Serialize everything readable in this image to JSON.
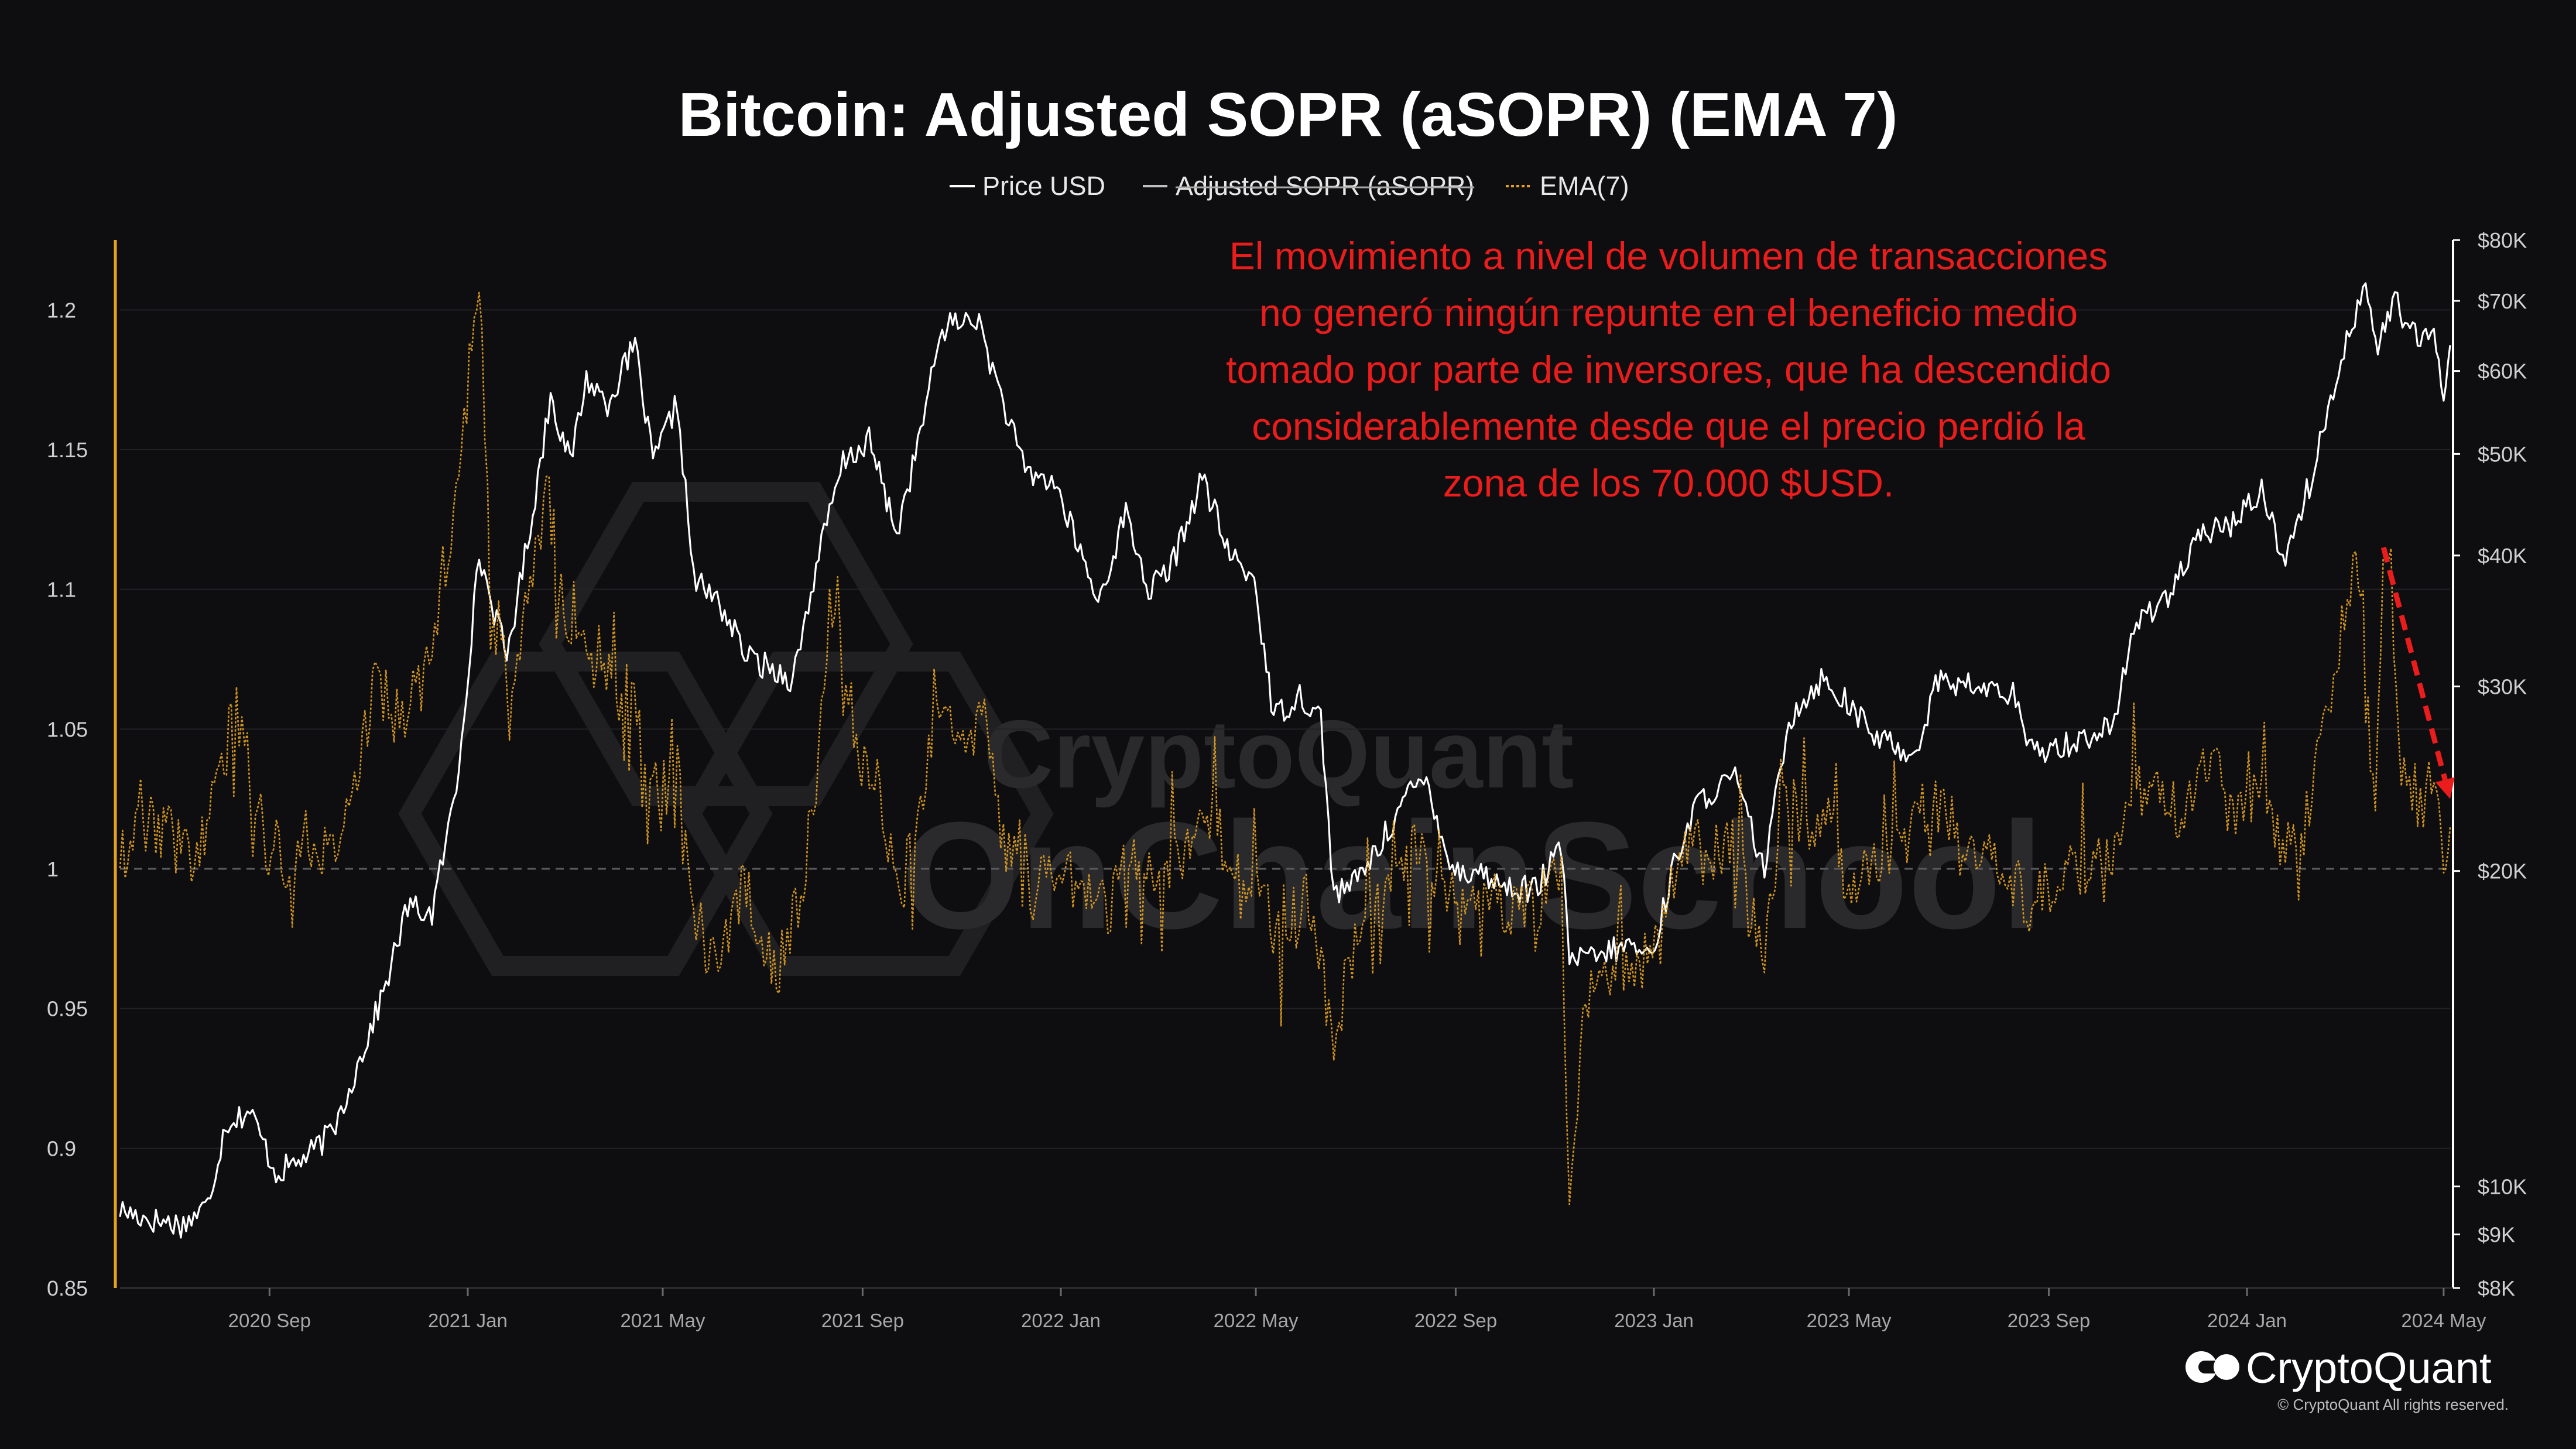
{
  "chart_data": {
    "type": "line",
    "title": "Bitcoin: Adjusted SOPR (aSOPR) (EMA 7)",
    "legend": [
      {
        "name": "Price USD",
        "style": "solid",
        "color": "#ffffff",
        "hidden": false
      },
      {
        "name": "Adjusted SOPR (aSOPR)",
        "style": "solid",
        "color": "#ffffff",
        "hidden": true
      },
      {
        "name": "EMA(7)",
        "style": "dashed",
        "color": "#e5a21f",
        "hidden": false
      }
    ],
    "legend_placement": "top-center",
    "x_ticks": [
      "2020 Sep",
      "2021 Jan",
      "2021 May",
      "2021 Sep",
      "2022 Jan",
      "2022 May",
      "2022 Sep",
      "2023 Jan",
      "2023 May",
      "2023 Sep",
      "2024 Jan",
      "2024 May"
    ],
    "x_range": [
      "2020-06-01",
      "2024-05-05"
    ],
    "y_left": {
      "ticks": [
        "1.2",
        "1.15",
        "1.1",
        "1.05",
        "1",
        "0.95",
        "0.9",
        "0.85"
      ],
      "tick_values": [
        1.2,
        1.15,
        1.1,
        1.05,
        1.0,
        0.95,
        0.9,
        0.85
      ],
      "min": 0.85,
      "max": 1.225,
      "reference_line": 1.0
    },
    "y_right": {
      "ticks": [
        "$80K",
        "$70K",
        "$60K",
        "$50K",
        "$40K",
        "$30K",
        "$20K",
        "$10K",
        "$9K",
        "$8K"
      ],
      "tick_values": [
        80000,
        70000,
        60000,
        50000,
        40000,
        30000,
        20000,
        10000,
        9000,
        8000
      ],
      "scale": "log",
      "min": 8000,
      "max": 80000
    },
    "grid": true,
    "series": [
      {
        "name": "Price USD",
        "axis": "right",
        "color": "#ffffff",
        "points": [
          [
            "2020-06-01",
            9500
          ],
          [
            "2020-06-20",
            9300
          ],
          [
            "2020-07-10",
            9200
          ],
          [
            "2020-07-25",
            9600
          ],
          [
            "2020-08-05",
            11500
          ],
          [
            "2020-08-20",
            11800
          ],
          [
            "2020-09-05",
            10300
          ],
          [
            "2020-09-25",
            10700
          ],
          [
            "2020-10-10",
            11300
          ],
          [
            "2020-10-25",
            13000
          ],
          [
            "2020-11-10",
            15300
          ],
          [
            "2020-11-25",
            18500
          ],
          [
            "2020-12-10",
            18200
          ],
          [
            "2020-12-25",
            24000
          ],
          [
            "2021-01-08",
            40000
          ],
          [
            "2021-01-25",
            32000
          ],
          [
            "2021-02-10",
            44000
          ],
          [
            "2021-02-21",
            57000
          ],
          [
            "2021-03-05",
            49000
          ],
          [
            "2021-03-15",
            59000
          ],
          [
            "2021-03-28",
            56000
          ],
          [
            "2021-04-14",
            63500
          ],
          [
            "2021-04-25",
            49000
          ],
          [
            "2021-05-10",
            56000
          ],
          [
            "2021-05-20",
            38000
          ],
          [
            "2021-06-05",
            36000
          ],
          [
            "2021-06-22",
            32000
          ],
          [
            "2021-07-20",
            30500
          ],
          [
            "2021-08-05",
            40000
          ],
          [
            "2021-08-20",
            49000
          ],
          [
            "2021-09-05",
            51500
          ],
          [
            "2021-09-22",
            42000
          ],
          [
            "2021-10-05",
            51000
          ],
          [
            "2021-10-20",
            66000
          ],
          [
            "2021-11-10",
            67500
          ],
          [
            "2021-11-25",
            57000
          ],
          [
            "2021-12-10",
            48000
          ],
          [
            "2021-12-28",
            47000
          ],
          [
            "2022-01-10",
            41500
          ],
          [
            "2022-01-24",
            36000
          ],
          [
            "2022-02-10",
            44000
          ],
          [
            "2022-02-24",
            37000
          ],
          [
            "2022-03-10",
            39000
          ],
          [
            "2022-03-29",
            47500
          ],
          [
            "2022-04-15",
            40000
          ],
          [
            "2022-04-30",
            38000
          ],
          [
            "2022-05-12",
            28000
          ],
          [
            "2022-05-28",
            29500
          ],
          [
            "2022-06-10",
            28000
          ],
          [
            "2022-06-18",
            19000
          ],
          [
            "2022-07-01",
            19500
          ],
          [
            "2022-07-15",
            21000
          ],
          [
            "2022-08-01",
            23500
          ],
          [
            "2022-08-14",
            24500
          ],
          [
            "2022-08-30",
            20000
          ],
          [
            "2022-09-15",
            20000
          ],
          [
            "2022-10-01",
            19300
          ],
          [
            "2022-10-20",
            19200
          ],
          [
            "2022-11-05",
            21000
          ],
          [
            "2022-11-10",
            16500
          ],
          [
            "2022-11-25",
            16500
          ],
          [
            "2022-12-15",
            17000
          ],
          [
            "2022-12-31",
            16600
          ],
          [
            "2023-01-15",
            20800
          ],
          [
            "2023-01-30",
            23500
          ],
          [
            "2023-02-20",
            24500
          ],
          [
            "2023-03-10",
            20000
          ],
          [
            "2023-03-25",
            28000
          ],
          [
            "2023-04-14",
            30500
          ],
          [
            "2023-04-30",
            29000
          ],
          [
            "2023-05-15",
            27000
          ],
          [
            "2023-06-10",
            25800
          ],
          [
            "2023-06-25",
            30500
          ],
          [
            "2023-07-15",
            30000
          ],
          [
            "2023-08-10",
            29500
          ],
          [
            "2023-08-20",
            26000
          ],
          [
            "2023-09-15",
            26500
          ],
          [
            "2023-10-10",
            27500
          ],
          [
            "2023-10-25",
            34500
          ],
          [
            "2023-11-15",
            37000
          ],
          [
            "2023-12-05",
            42000
          ],
          [
            "2023-12-25",
            43000
          ],
          [
            "2024-01-10",
            46500
          ],
          [
            "2024-01-23",
            39500
          ],
          [
            "2024-02-10",
            47500
          ],
          [
            "2024-02-28",
            62000
          ],
          [
            "2024-03-14",
            73000
          ],
          [
            "2024-03-20",
            63000
          ],
          [
            "2024-04-01",
            70000
          ],
          [
            "2024-04-15",
            64000
          ],
          [
            "2024-04-25",
            64500
          ],
          [
            "2024-05-01",
            57500
          ],
          [
            "2024-05-05",
            63500
          ]
        ]
      },
      {
        "name": "EMA(7)",
        "axis": "left",
        "color": "#e5a21f",
        "points": [
          [
            "2020-06-01",
            1.005
          ],
          [
            "2020-06-20",
            1.018
          ],
          [
            "2020-07-10",
            1.006
          ],
          [
            "2020-07-20",
            1.01
          ],
          [
            "2020-08-01",
            1.03
          ],
          [
            "2020-08-10",
            1.058
          ],
          [
            "2020-08-25",
            1.025
          ],
          [
            "2020-09-10",
            1.0
          ],
          [
            "2020-09-25",
            1.012
          ],
          [
            "2020-10-10",
            1.005
          ],
          [
            "2020-10-25",
            1.03
          ],
          [
            "2020-11-05",
            1.07
          ],
          [
            "2020-11-20",
            1.052
          ],
          [
            "2020-12-05",
            1.068
          ],
          [
            "2020-12-20",
            1.115
          ],
          [
            "2021-01-02",
            1.178
          ],
          [
            "2021-01-08",
            1.21
          ],
          [
            "2021-01-15",
            1.1
          ],
          [
            "2021-01-30",
            1.06
          ],
          [
            "2021-02-10",
            1.11
          ],
          [
            "2021-02-20",
            1.135
          ],
          [
            "2021-03-01",
            1.085
          ],
          [
            "2021-03-15",
            1.08
          ],
          [
            "2021-04-01",
            1.065
          ],
          [
            "2021-04-15",
            1.06
          ],
          [
            "2021-04-25",
            1.03
          ],
          [
            "2021-05-10",
            1.05
          ],
          [
            "2021-05-20",
            0.985
          ],
          [
            "2021-06-01",
            0.965
          ],
          [
            "2021-06-20",
            0.995
          ],
          [
            "2021-07-10",
            0.962
          ],
          [
            "2021-07-25",
            0.99
          ],
          [
            "2021-08-05",
            1.04
          ],
          [
            "2021-08-15",
            1.105
          ],
          [
            "2021-08-25",
            1.04
          ],
          [
            "2021-09-10",
            1.03
          ],
          [
            "2021-09-25",
            0.992
          ],
          [
            "2021-10-10",
            1.035
          ],
          [
            "2021-10-20",
            1.06
          ],
          [
            "2021-11-05",
            1.04
          ],
          [
            "2021-11-15",
            1.058
          ],
          [
            "2021-11-25",
            1.015
          ],
          [
            "2021-12-10",
            0.99
          ],
          [
            "2021-12-28",
            1.0
          ],
          [
            "2022-01-15",
            0.995
          ],
          [
            "2022-01-30",
            0.985
          ],
          [
            "2022-02-15",
            1.005
          ],
          [
            "2022-03-01",
            0.995
          ],
          [
            "2022-03-20",
            1.01
          ],
          [
            "2022-04-01",
            1.02
          ],
          [
            "2022-04-20",
            1.0
          ],
          [
            "2022-05-05",
            0.99
          ],
          [
            "2022-05-15",
            0.975
          ],
          [
            "2022-06-01",
            0.99
          ],
          [
            "2022-06-18",
            0.94
          ],
          [
            "2022-07-01",
            0.975
          ],
          [
            "2022-07-15",
            0.99
          ],
          [
            "2022-08-05",
            1.01
          ],
          [
            "2022-08-25",
            0.995
          ],
          [
            "2022-09-10",
            0.985
          ],
          [
            "2022-09-25",
            0.99
          ],
          [
            "2022-10-10",
            0.985
          ],
          [
            "2022-10-25",
            0.99
          ],
          [
            "2022-11-05",
            0.998
          ],
          [
            "2022-11-10",
            0.875
          ],
          [
            "2022-11-20",
            0.955
          ],
          [
            "2022-12-05",
            0.96
          ],
          [
            "2022-12-20",
            0.965
          ],
          [
            "2023-01-05",
            0.975
          ],
          [
            "2023-01-20",
            1.01
          ],
          [
            "2023-02-05",
            1.005
          ],
          [
            "2023-02-20",
            1.01
          ],
          [
            "2023-03-10",
            0.97
          ],
          [
            "2023-03-20",
            1.03
          ],
          [
            "2023-04-05",
            1.015
          ],
          [
            "2023-04-20",
            1.02
          ],
          [
            "2023-05-01",
            0.99
          ],
          [
            "2023-05-15",
            1.0
          ],
          [
            "2023-06-01",
            1.01
          ],
          [
            "2023-06-20",
            1.025
          ],
          [
            "2023-07-05",
            1.015
          ],
          [
            "2023-07-20",
            1.005
          ],
          [
            "2023-08-05",
            1.0
          ],
          [
            "2023-08-20",
            0.988
          ],
          [
            "2023-09-05",
            0.995
          ],
          [
            "2023-09-25",
            1.0
          ],
          [
            "2023-10-10",
            1.005
          ],
          [
            "2023-10-25",
            1.03
          ],
          [
            "2023-11-10",
            1.025
          ],
          [
            "2023-11-25",
            1.02
          ],
          [
            "2023-12-10",
            1.04
          ],
          [
            "2023-12-25",
            1.02
          ],
          [
            "2024-01-10",
            1.03
          ],
          [
            "2024-01-23",
            1.005
          ],
          [
            "2024-02-05",
            1.015
          ],
          [
            "2024-02-20",
            1.06
          ],
          [
            "2024-03-01",
            1.09
          ],
          [
            "2024-03-08",
            1.115
          ],
          [
            "2024-03-14",
            1.06
          ],
          [
            "2024-03-20",
            1.03
          ],
          [
            "2024-03-28",
            1.12
          ],
          [
            "2024-04-05",
            1.04
          ],
          [
            "2024-04-15",
            1.02
          ],
          [
            "2024-04-22",
            1.035
          ],
          [
            "2024-05-01",
            1.005
          ],
          [
            "2024-05-05",
            1.015
          ]
        ]
      }
    ],
    "annotations": [
      {
        "text_lines": [
          "El movimiento a nivel de volumen de transacciones",
          "no generó ningún repunte en el beneficio medio",
          "tomado por parte de inversores, que ha descendido",
          "considerablemente desde que el precio perdió la",
          "zona de los 70.000 $USD."
        ],
        "color": "#ea1c1c"
      },
      {
        "type": "dashed-arrow",
        "color": "#ea1c1c",
        "from": [
          "2024-03-25",
          1.115
        ],
        "to": [
          "2024-05-05",
          1.025
        ]
      }
    ]
  },
  "watermark": {
    "text1": "CryptoQuant",
    "text2": "OnChainSchool"
  },
  "brand": {
    "name": "CryptoQuant",
    "copyright": "© CryptoQuant All rights reserved."
  }
}
